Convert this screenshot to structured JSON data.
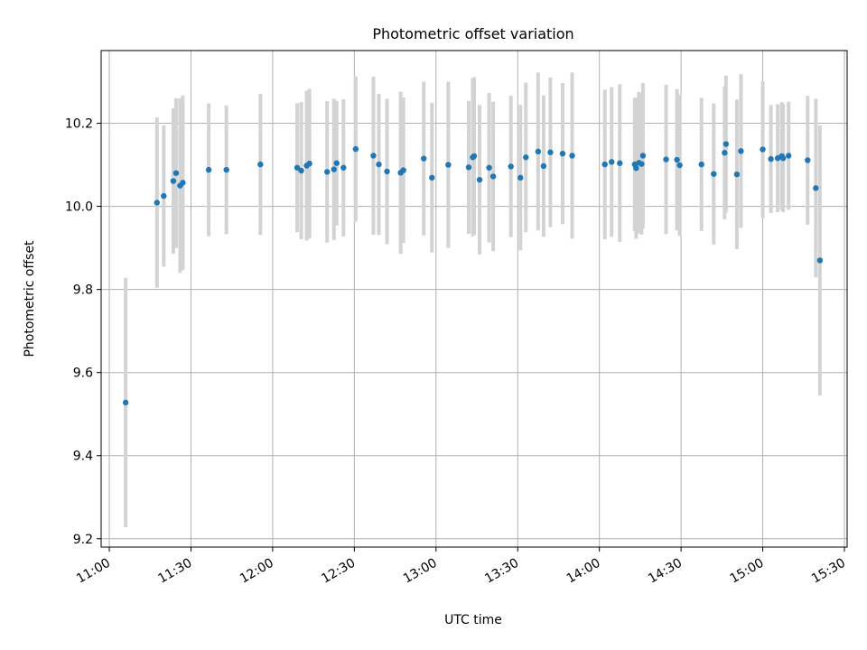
{
  "chart_data": {
    "type": "scatter",
    "title": "Photometric offset variation",
    "xlabel": "UTC time",
    "ylabel": "Photometric offset",
    "xlim": [
      "10:57",
      "15:31"
    ],
    "ylim": [
      9.18,
      10.375
    ],
    "xticks": [
      "11:00",
      "11:30",
      "12:00",
      "12:30",
      "13:00",
      "13:30",
      "14:00",
      "14:30",
      "15:00",
      "15:30"
    ],
    "yticks": [
      "9.2",
      "9.4",
      "9.6",
      "9.8",
      "10.0",
      "10.2"
    ],
    "grid": true,
    "colors": {
      "point": "#1f77b4",
      "errorbar": "#d3d3d3",
      "grid": "#b0b0b0"
    },
    "series": [
      {
        "x": [
          "11:06:00",
          "11:17:30",
          "11:20:00",
          "11:23:30",
          "11:24:30",
          "11:26:00",
          "11:27:00",
          "11:36:30",
          "11:43:00",
          "11:55:30",
          "12:09:00",
          "12:10:30",
          "12:12:30",
          "12:13:30",
          "12:20:00",
          "12:22:30",
          "12:23:30",
          "12:26:00",
          "12:30:30",
          "12:37:00",
          "12:39:00",
          "12:42:00",
          "12:47:00",
          "12:48:00",
          "12:55:30",
          "12:58:30",
          "13:04:30",
          "13:12:00",
          "13:13:30",
          "13:14:00",
          "13:16:00",
          "13:19:30",
          "13:21:00",
          "13:27:30",
          "13:31:00",
          "13:33:00",
          "13:37:30",
          "13:39:30",
          "13:42:00",
          "13:46:30",
          "13:50:00",
          "14:02:00",
          "14:04:30",
          "14:07:30",
          "14:13:00",
          "14:13:30",
          "14:14:30",
          "14:15:30",
          "14:16:00",
          "14:24:30",
          "14:28:30",
          "14:29:30",
          "14:37:30",
          "14:42:00",
          "14:46:00",
          "14:46:30",
          "14:50:30",
          "14:52:00",
          "15:00:00",
          "15:03:00",
          "15:05:30",
          "15:07:00",
          "15:07:30",
          "15:09:30",
          "15:16:30",
          "15:19:30",
          "15:21:00"
        ],
        "y": [
          9.528,
          10.009,
          10.025,
          10.061,
          10.08,
          10.05,
          10.057,
          10.088,
          10.088,
          10.101,
          10.093,
          10.086,
          10.098,
          10.103,
          10.083,
          10.089,
          10.104,
          10.093,
          10.138,
          10.122,
          10.101,
          10.084,
          10.081,
          10.087,
          10.115,
          10.069,
          10.1,
          10.094,
          10.118,
          10.121,
          10.064,
          10.093,
          10.072,
          10.096,
          10.069,
          10.118,
          10.132,
          10.097,
          10.13,
          10.127,
          10.122,
          10.101,
          10.107,
          10.104,
          10.101,
          10.092,
          10.105,
          10.102,
          10.122,
          10.113,
          10.112,
          10.099,
          10.101,
          10.078,
          10.129,
          10.15,
          10.077,
          10.133,
          10.137,
          10.114,
          10.116,
          10.121,
          10.116,
          10.122,
          10.111,
          10.044,
          9.87
        ],
        "yerr": [
          0.3,
          0.205,
          0.17,
          0.175,
          0.18,
          0.21,
          0.21,
          0.16,
          0.155,
          0.17,
          0.155,
          0.165,
          0.18,
          0.18,
          0.17,
          0.17,
          0.15,
          0.165,
          0.175,
          0.19,
          0.17,
          0.175,
          0.195,
          0.175,
          0.185,
          0.18,
          0.2,
          0.16,
          0.19,
          0.19,
          0.18,
          0.18,
          0.18,
          0.17,
          0.175,
          0.18,
          0.19,
          0.17,
          0.18,
          0.17,
          0.2,
          0.18,
          0.18,
          0.19,
          0.16,
          0.17,
          0.17,
          0.17,
          0.175,
          0.18,
          0.17,
          0.17,
          0.16,
          0.17,
          0.16,
          0.165,
          0.18,
          0.185,
          0.165,
          0.13,
          0.13,
          0.13,
          0.13,
          0.13,
          0.155,
          0.215,
          0.325
        ]
      }
    ]
  }
}
